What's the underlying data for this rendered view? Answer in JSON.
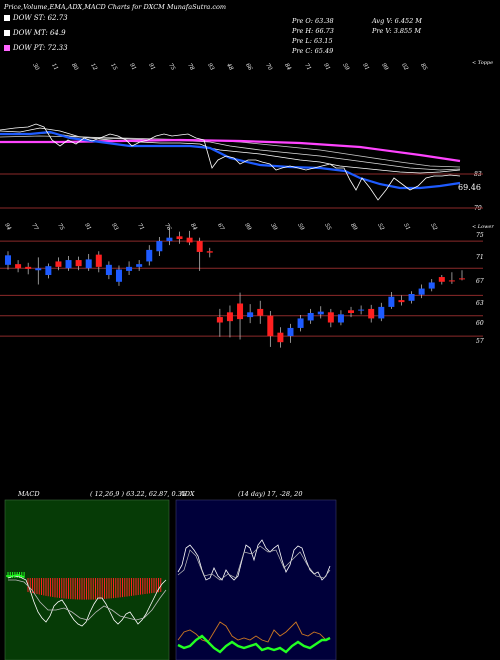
{
  "header": {
    "title": "Price,Volume,EMA,ADX,MACD Charts for DXCM MunafaSutra.com",
    "o": "Pre  O: 63.38",
    "h": "Pre  H: 66.73",
    "l": "Pre  L: 63.15",
    "c": "Pre  C: 65.49",
    "avgv": "Avg V: 6.452  M",
    "prev": "Pre  V: 3.855  M"
  },
  "legend": [
    {
      "label": "DOW ST: 62.73",
      "color": "#ffffff"
    },
    {
      "label": "DOW MT: 64.9",
      "color": "#ffffff"
    },
    {
      "label": "DOW PT: 72.33",
      "color": "#ff66ff"
    }
  ],
  "colors": {
    "up": "#1e5bff",
    "down": "#ff2020",
    "ema": "#1e5bff",
    "pt": "#ff44ff",
    "grid": "#8b2a2a",
    "macd_panel": "#063b06",
    "adx_panel": "#00003a",
    "adx_line": "#ffffff",
    "adx_pos": "#22ff22",
    "adx_neg": "#cc7722"
  },
  "volume_top": {
    "corner_label": "< Toppe",
    "value_label": "69.46",
    "y_ticks": [
      "83",
      "79"
    ],
    "x_ticks": [
      "30",
      "11",
      "80",
      "12",
      "15",
      "91",
      "91",
      "75",
      "78",
      "93",
      "48",
      "66",
      "70",
      "84",
      "71",
      "91",
      "59",
      "91",
      "99",
      "02",
      "85"
    ]
  },
  "price": {
    "corner_label": "< Lower",
    "y_ticks": [
      "75",
      "71",
      "67",
      "63",
      "60",
      "57"
    ],
    "x_ticks": [
      "94",
      "77",
      "75",
      "91",
      "93",
      "71",
      "76",
      "84",
      "67",
      "99",
      "39",
      "59",
      "55",
      "89",
      "52",
      "51",
      "52"
    ]
  },
  "chart_data": {
    "type": "candlestick",
    "y_axis": [
      52,
      80
    ],
    "candles": [
      {
        "o": 67.5,
        "c": 68.9,
        "h": 69.5,
        "l": 66.8
      },
      {
        "o": 67.6,
        "c": 67.0,
        "h": 68.2,
        "l": 66.4
      },
      {
        "o": 67.2,
        "c": 66.9,
        "h": 67.8,
        "l": 66.1
      },
      {
        "o": 66.7,
        "c": 67.0,
        "h": 68.6,
        "l": 64.6
      },
      {
        "o": 66.0,
        "c": 67.3,
        "h": 67.7,
        "l": 65.5
      },
      {
        "o": 68.0,
        "c": 67.2,
        "h": 68.6,
        "l": 66.7
      },
      {
        "o": 67.0,
        "c": 68.2,
        "h": 68.8,
        "l": 66.6
      },
      {
        "o": 68.2,
        "c": 67.3,
        "h": 68.7,
        "l": 66.7
      },
      {
        "o": 67.0,
        "c": 68.3,
        "h": 69.1,
        "l": 66.6
      },
      {
        "o": 69.0,
        "c": 67.2,
        "h": 69.5,
        "l": 66.4
      },
      {
        "o": 66.0,
        "c": 67.5,
        "h": 68.0,
        "l": 65.4
      },
      {
        "o": 65.0,
        "c": 66.8,
        "h": 67.4,
        "l": 64.4
      },
      {
        "o": 66.6,
        "c": 67.2,
        "h": 68.0,
        "l": 66.0
      },
      {
        "o": 67.2,
        "c": 67.6,
        "h": 68.2,
        "l": 66.6
      },
      {
        "o": 68.0,
        "c": 69.7,
        "h": 70.4,
        "l": 67.4
      },
      {
        "o": 69.5,
        "c": 71.0,
        "h": 71.6,
        "l": 68.8
      },
      {
        "o": 71.0,
        "c": 71.5,
        "h": 72.9,
        "l": 70.4
      },
      {
        "o": 71.7,
        "c": 71.3,
        "h": 72.4,
        "l": 70.6
      },
      {
        "o": 71.5,
        "c": 70.8,
        "h": 72.5,
        "l": 70.4
      },
      {
        "o": 71.0,
        "c": 69.4,
        "h": 71.5,
        "l": 66.6
      },
      {
        "o": 69.5,
        "c": 69.3,
        "h": 70.0,
        "l": 68.6
      },
      {
        "o": 59.8,
        "c": 59.0,
        "h": 61.0,
        "l": 56.9
      },
      {
        "o": 60.5,
        "c": 59.2,
        "h": 61.5,
        "l": 56.8
      },
      {
        "o": 61.8,
        "c": 59.5,
        "h": 63.4,
        "l": 56.5
      },
      {
        "o": 59.8,
        "c": 60.5,
        "h": 61.7,
        "l": 58.9
      },
      {
        "o": 61.0,
        "c": 60.0,
        "h": 62.2,
        "l": 58.8
      },
      {
        "o": 60.0,
        "c": 57.0,
        "h": 60.7,
        "l": 55.4
      },
      {
        "o": 57.5,
        "c": 56.1,
        "h": 58.3,
        "l": 55.3
      },
      {
        "o": 57.0,
        "c": 58.2,
        "h": 58.8,
        "l": 56.0
      },
      {
        "o": 58.2,
        "c": 59.6,
        "h": 60.1,
        "l": 57.7
      },
      {
        "o": 59.3,
        "c": 60.4,
        "h": 61.0,
        "l": 58.8
      },
      {
        "o": 60.2,
        "c": 60.6,
        "h": 61.4,
        "l": 59.6
      },
      {
        "o": 60.5,
        "c": 59.0,
        "h": 61.0,
        "l": 58.3
      },
      {
        "o": 59.0,
        "c": 60.2,
        "h": 60.8,
        "l": 58.6
      },
      {
        "o": 60.8,
        "c": 60.4,
        "h": 61.3,
        "l": 59.8
      },
      {
        "o": 60.8,
        "c": 60.9,
        "h": 61.5,
        "l": 60.2
      },
      {
        "o": 61.0,
        "c": 59.6,
        "h": 61.6,
        "l": 59.0
      },
      {
        "o": 59.6,
        "c": 61.3,
        "h": 61.9,
        "l": 59.2
      },
      {
        "o": 61.3,
        "c": 62.8,
        "h": 63.5,
        "l": 61.0
      },
      {
        "o": 62.3,
        "c": 62.0,
        "h": 63.0,
        "l": 61.5
      },
      {
        "o": 62.2,
        "c": 63.2,
        "h": 63.6,
        "l": 61.8
      },
      {
        "o": 63.1,
        "c": 64.0,
        "h": 64.6,
        "l": 62.6
      },
      {
        "o": 64.0,
        "c": 64.9,
        "h": 65.4,
        "l": 63.6
      },
      {
        "o": 65.7,
        "c": 65.0,
        "h": 66.0,
        "l": 64.6
      },
      {
        "o": 65.2,
        "c": 65.1,
        "h": 66.4,
        "l": 64.7
      },
      {
        "o": 65.5,
        "c": 65.4,
        "h": 66.7,
        "l": 65.2
      }
    ],
    "h_lines": [
      71,
      67,
      63,
      60,
      57
    ]
  },
  "macd": {
    "label": "MACD",
    "params": "( 12,26,9 ) 63.22,  62.87,  0.35"
  },
  "adx": {
    "label": "ADX",
    "params": "(14  day) 17,  -28,  20"
  }
}
